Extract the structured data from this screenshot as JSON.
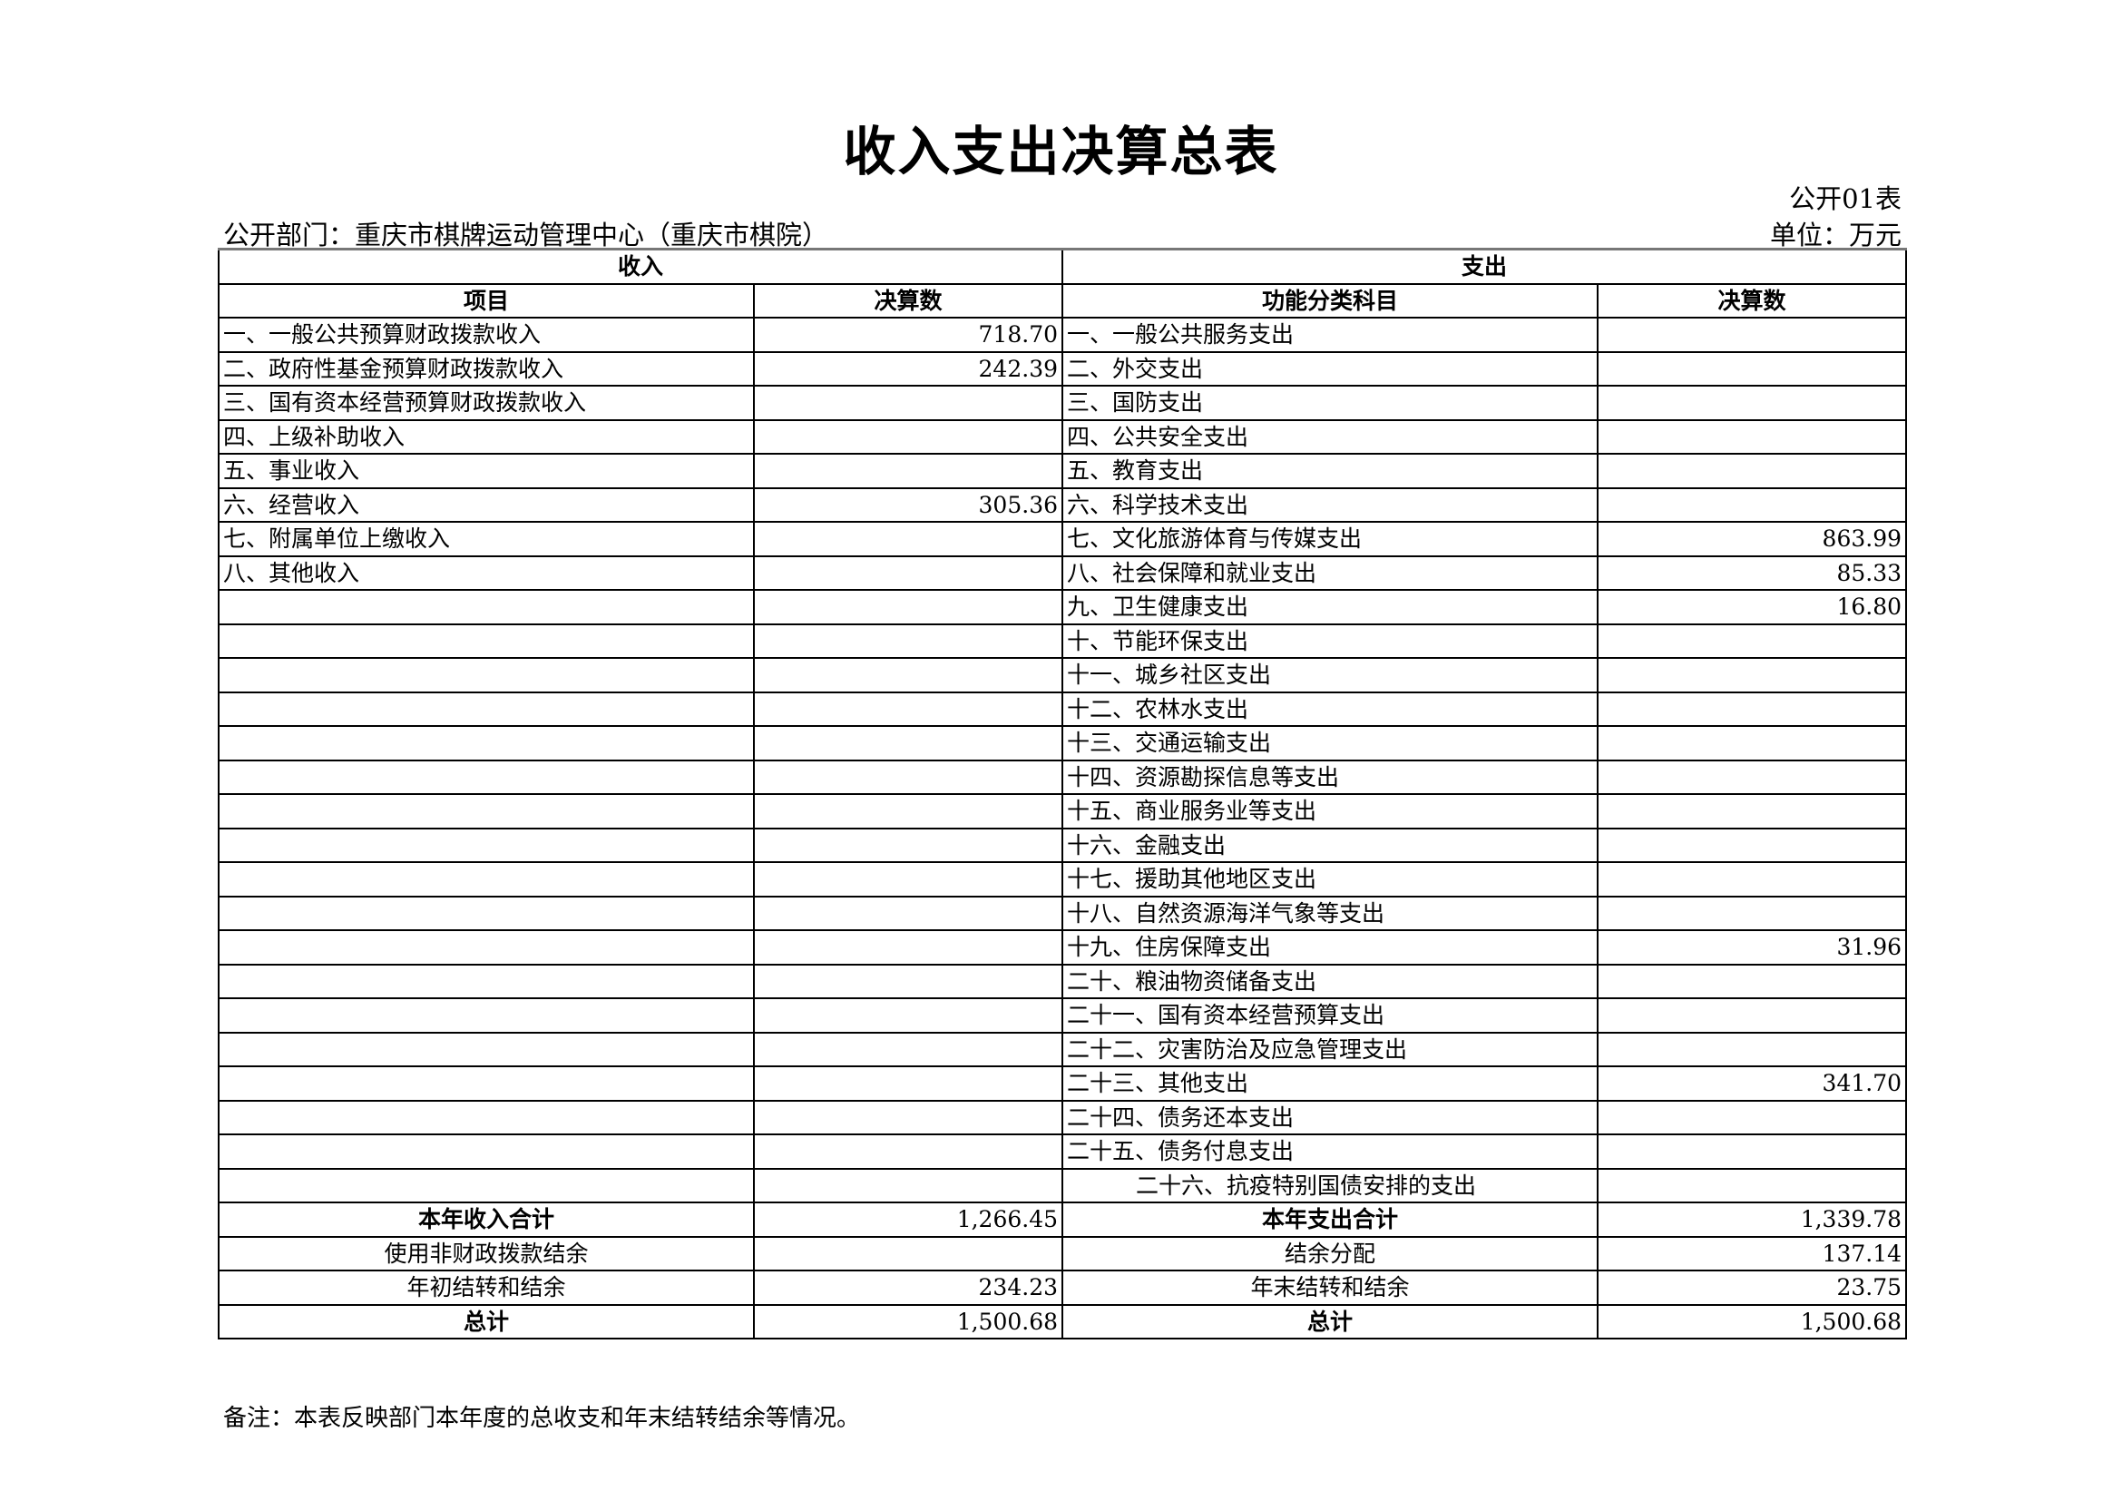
{
  "title": "收入支出决算总表",
  "form_no": "公开01表",
  "department": "公开部门：重庆市棋牌运动管理中心（重庆市棋院）",
  "unit": "单位：万元",
  "headers": {
    "income": "收入",
    "expense": "支出",
    "item": "项目",
    "amount": "决算数",
    "func_item": "功能分类科目",
    "amount2": "决算数"
  },
  "rows": [
    {
      "in_item": "一、一般公共预算财政拨款收入",
      "in_amt": "718.70",
      "ex_item": "一、一般公共服务支出",
      "ex_amt": ""
    },
    {
      "in_item": "二、政府性基金预算财政拨款收入",
      "in_amt": "242.39",
      "ex_item": "二、外交支出",
      "ex_amt": ""
    },
    {
      "in_item": "三、国有资本经营预算财政拨款收入",
      "in_amt": "",
      "ex_item": "三、国防支出",
      "ex_amt": ""
    },
    {
      "in_item": "四、上级补助收入",
      "in_amt": "",
      "ex_item": "四、公共安全支出",
      "ex_amt": ""
    },
    {
      "in_item": "五、事业收入",
      "in_amt": "",
      "ex_item": "五、教育支出",
      "ex_amt": ""
    },
    {
      "in_item": "六、经营收入",
      "in_amt": "305.36",
      "ex_item": "六、科学技术支出",
      "ex_amt": ""
    },
    {
      "in_item": "七、附属单位上缴收入",
      "in_amt": "",
      "ex_item": "七、文化旅游体育与传媒支出",
      "ex_amt": "863.99"
    },
    {
      "in_item": "八、其他收入",
      "in_amt": "",
      "ex_item": "八、社会保障和就业支出",
      "ex_amt": "85.33"
    },
    {
      "in_item": "",
      "in_amt": "",
      "ex_item": "九、卫生健康支出",
      "ex_amt": "16.80"
    },
    {
      "in_item": "",
      "in_amt": "",
      "ex_item": "十、节能环保支出",
      "ex_amt": ""
    },
    {
      "in_item": "",
      "in_amt": "",
      "ex_item": "十一、城乡社区支出",
      "ex_amt": ""
    },
    {
      "in_item": "",
      "in_amt": "",
      "ex_item": "十二、农林水支出",
      "ex_amt": ""
    },
    {
      "in_item": "",
      "in_amt": "",
      "ex_item": "十三、交通运输支出",
      "ex_amt": ""
    },
    {
      "in_item": "",
      "in_amt": "",
      "ex_item": "十四、资源勘探信息等支出",
      "ex_amt": ""
    },
    {
      "in_item": "",
      "in_amt": "",
      "ex_item": "十五、商业服务业等支出",
      "ex_amt": ""
    },
    {
      "in_item": "",
      "in_amt": "",
      "ex_item": "十六、金融支出",
      "ex_amt": ""
    },
    {
      "in_item": "",
      "in_amt": "",
      "ex_item": "十七、援助其他地区支出",
      "ex_amt": ""
    },
    {
      "in_item": "",
      "in_amt": "",
      "ex_item": "十八、自然资源海洋气象等支出",
      "ex_amt": ""
    },
    {
      "in_item": "",
      "in_amt": "",
      "ex_item": "十九、住房保障支出",
      "ex_amt": "31.96"
    },
    {
      "in_item": "",
      "in_amt": "",
      "ex_item": "二十、粮油物资储备支出",
      "ex_amt": ""
    },
    {
      "in_item": "",
      "in_amt": "",
      "ex_item": "二十一、国有资本经营预算支出",
      "ex_amt": ""
    },
    {
      "in_item": "",
      "in_amt": "",
      "ex_item": "二十二、灾害防治及应急管理支出",
      "ex_amt": ""
    },
    {
      "in_item": "",
      "in_amt": "",
      "ex_item": "二十三、其他支出",
      "ex_amt": "341.70"
    },
    {
      "in_item": "",
      "in_amt": "",
      "ex_item": "二十四、债务还本支出",
      "ex_amt": ""
    },
    {
      "in_item": "",
      "in_amt": "",
      "ex_item": "二十五、债务付息支出",
      "ex_amt": ""
    },
    {
      "in_item": "",
      "in_amt": "",
      "ex_item": "二十六、抗疫特别国债安排的支出",
      "ex_amt": ""
    }
  ],
  "summary": [
    {
      "in_item": "本年收入合计",
      "in_amt": "1,266.45",
      "ex_item": "本年支出合计",
      "ex_amt": "1,339.78",
      "bold": true
    },
    {
      "in_item": "使用非财政拨款结余",
      "in_amt": "",
      "ex_item": "结余分配",
      "ex_amt": "137.14",
      "bold": false
    },
    {
      "in_item": "年初结转和结余",
      "in_amt": "234.23",
      "ex_item": "年末结转和结余",
      "ex_amt": "23.75",
      "bold": false
    },
    {
      "in_item": "总计",
      "in_amt": "1,500.68",
      "ex_item": "总计",
      "ex_amt": "1,500.68",
      "bold": true
    }
  ],
  "note": "备注：本表反映部门本年度的总收支和年末结转结余等情况。"
}
